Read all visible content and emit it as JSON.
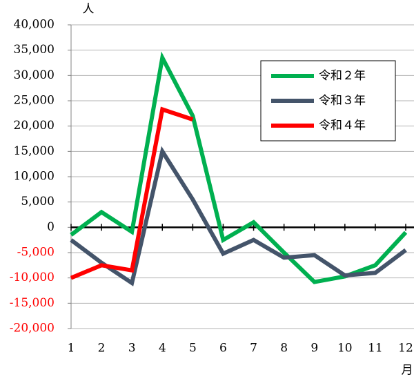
{
  "chart_data": {
    "type": "line",
    "y_unit": "人",
    "x_unit": "月",
    "categories": [
      "1",
      "2",
      "3",
      "4",
      "5",
      "6",
      "7",
      "8",
      "9",
      "10",
      "11",
      "12"
    ],
    "series": [
      {
        "name": "令和２年",
        "color": "#00b050",
        "values": [
          -1500,
          3000,
          -900,
          33500,
          22000,
          -2500,
          1000,
          -5000,
          -10800,
          -9700,
          -7500,
          -1000
        ]
      },
      {
        "name": "令和３年",
        "color": "#44546a",
        "values": [
          -2500,
          -7000,
          -11000,
          15000,
          5500,
          -5200,
          -2500,
          -6000,
          -5500,
          -9500,
          -9000,
          -4500
        ]
      },
      {
        "name": "令和４年",
        "color": "#ff0000",
        "values": [
          -10000,
          -7500,
          -8500,
          23300,
          21300,
          null,
          null,
          null,
          null,
          null,
          null,
          null
        ]
      }
    ],
    "ylim": [
      -20000,
      40000
    ],
    "yticks": [
      {
        "value": -20000,
        "label": "-20,000"
      },
      {
        "value": -15000,
        "label": "-15,000"
      },
      {
        "value": -10000,
        "label": "-10,000"
      },
      {
        "value": -5000,
        "label": "-5,000"
      },
      0,
      {
        "value": 5000,
        "label": "5,000"
      },
      {
        "value": 10000,
        "label": "10,000"
      },
      {
        "value": 15000,
        "label": "15,000"
      },
      {
        "value": 20000,
        "label": "20,000"
      },
      {
        "value": 25000,
        "label": "25,000"
      },
      {
        "value": 30000,
        "label": "30,000"
      },
      {
        "value": 35000,
        "label": "35,000"
      },
      {
        "value": 40000,
        "label": "40,000"
      }
    ],
    "negative_tick_color": "#ff0000",
    "grid": true,
    "legend": "upper right"
  }
}
